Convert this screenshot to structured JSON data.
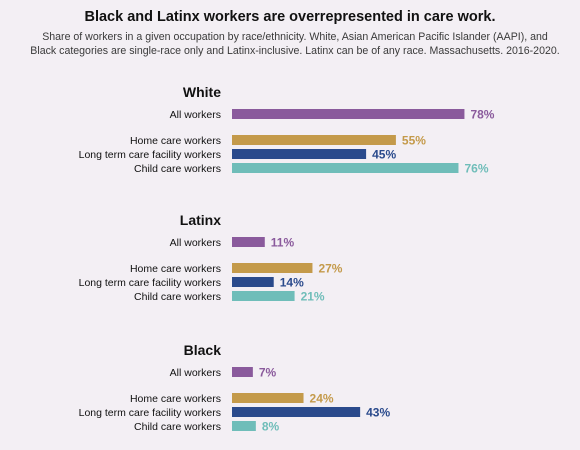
{
  "chart_data": {
    "type": "bar",
    "orientation": "horizontal",
    "title": "Black and Latinx workers are overrepresented in care work.",
    "subtitle": "Share of workers in a given occupation by race/ethnicity. White, Asian American Pacific Islander (AAPI), and Black categories are single-race only and Latinx-inclusive. Latinx can be of any race. Massachusetts. 2016-2020.",
    "categories": [
      "All workers",
      "Home care workers",
      "Long term care facility workers",
      "Child care workers"
    ],
    "unit": "%",
    "xlim": [
      0,
      100
    ],
    "grid": false,
    "legend": "none",
    "colors": {
      "All workers": "#8a5a9c",
      "Home care workers": "#c49a4a",
      "Long term care facility workers": "#2a4a8c",
      "Child care workers": "#6fbdb9"
    },
    "groups": [
      {
        "name": "White",
        "values": [
          78,
          55,
          45,
          76
        ]
      },
      {
        "name": "Latinx",
        "values": [
          11,
          27,
          14,
          21
        ]
      },
      {
        "name": "Black",
        "values": [
          7,
          24,
          43,
          8
        ]
      }
    ]
  }
}
